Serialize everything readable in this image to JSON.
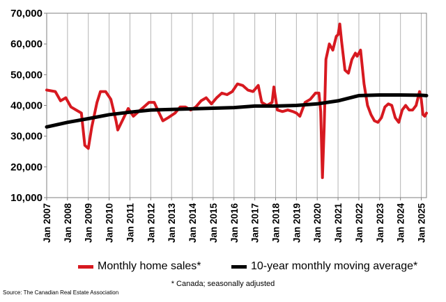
{
  "chart_data": {
    "type": "line",
    "title": "",
    "xlabel": "",
    "ylabel": "",
    "ylim": [
      10000,
      70000
    ],
    "y_ticks": [
      "10,000",
      "20,000",
      "30,000",
      "40,000",
      "50,000",
      "60,000",
      "70,000"
    ],
    "x_ticks": [
      "Jan 2007",
      "Jan 2008",
      "Jan 2009",
      "Jan 2010",
      "Jan 2011",
      "Jan 2012",
      "Jan 2013",
      "Jan 2014",
      "Jan 2015",
      "Jan 2016",
      "Jan 2017",
      "Jan 2018",
      "Jan 2019",
      "Jan 2020",
      "Jan 2021",
      "Jan 2022",
      "Jan 2023",
      "Jan 2024",
      "Jan 2025"
    ],
    "x_range": [
      "2007-01",
      "2025-04"
    ],
    "grid": "vertical gridlines at each January",
    "legend_position": "bottom",
    "series": [
      {
        "name": "Monthly home sales*",
        "color": "#d71920",
        "points": [
          [
            "2007-01",
            45000
          ],
          [
            "2007-06",
            44500
          ],
          [
            "2007-09",
            41500
          ],
          [
            "2007-12",
            42500
          ],
          [
            "2008-03",
            39500
          ],
          [
            "2008-06",
            38500
          ],
          [
            "2008-09",
            37500
          ],
          [
            "2008-11",
            27000
          ],
          [
            "2009-01",
            26000
          ],
          [
            "2009-03",
            33000
          ],
          [
            "2009-06",
            41000
          ],
          [
            "2009-08",
            44500
          ],
          [
            "2009-11",
            44500
          ],
          [
            "2010-02",
            42000
          ],
          [
            "2010-05",
            35000
          ],
          [
            "2010-06",
            32000
          ],
          [
            "2010-09",
            35500
          ],
          [
            "2010-12",
            39000
          ],
          [
            "2011-03",
            36500
          ],
          [
            "2011-06",
            38000
          ],
          [
            "2011-09",
            39500
          ],
          [
            "2011-12",
            41000
          ],
          [
            "2012-03",
            41000
          ],
          [
            "2012-05",
            38500
          ],
          [
            "2012-08",
            35000
          ],
          [
            "2012-11",
            36000
          ],
          [
            "2013-03",
            37500
          ],
          [
            "2013-06",
            39500
          ],
          [
            "2013-09",
            39500
          ],
          [
            "2013-12",
            38500
          ],
          [
            "2014-03",
            39500
          ],
          [
            "2014-06",
            41500
          ],
          [
            "2014-09",
            42500
          ],
          [
            "2014-12",
            40500
          ],
          [
            "2015-03",
            42500
          ],
          [
            "2015-06",
            44000
          ],
          [
            "2015-09",
            43500
          ],
          [
            "2015-12",
            44500
          ],
          [
            "2016-03",
            47000
          ],
          [
            "2016-06",
            46500
          ],
          [
            "2016-09",
            45000
          ],
          [
            "2016-12",
            44500
          ],
          [
            "2017-03",
            46500
          ],
          [
            "2017-05",
            41000
          ],
          [
            "2017-08",
            40000
          ],
          [
            "2017-11",
            41000
          ],
          [
            "2017-12",
            46000
          ],
          [
            "2018-02",
            38500
          ],
          [
            "2018-05",
            38000
          ],
          [
            "2018-08",
            38500
          ],
          [
            "2018-11",
            38000
          ],
          [
            "2019-01",
            37500
          ],
          [
            "2019-03",
            36500
          ],
          [
            "2019-06",
            41000
          ],
          [
            "2019-09",
            42000
          ],
          [
            "2019-12",
            44000
          ],
          [
            "2020-02",
            44000
          ],
          [
            "2020-03",
            38000
          ],
          [
            "2020-04",
            16500
          ],
          [
            "2020-05",
            33000
          ],
          [
            "2020-06",
            55000
          ],
          [
            "2020-08",
            60000
          ],
          [
            "2020-10",
            58000
          ],
          [
            "2020-12",
            62500
          ],
          [
            "2021-01",
            63000
          ],
          [
            "2021-02",
            66500
          ],
          [
            "2021-03",
            61000
          ],
          [
            "2021-05",
            51500
          ],
          [
            "2021-07",
            50500
          ],
          [
            "2021-09",
            55000
          ],
          [
            "2021-11",
            57000
          ],
          [
            "2021-12",
            56000
          ],
          [
            "2022-02",
            58000
          ],
          [
            "2022-04",
            47000
          ],
          [
            "2022-06",
            40000
          ],
          [
            "2022-08",
            37000
          ],
          [
            "2022-10",
            35000
          ],
          [
            "2022-12",
            34500
          ],
          [
            "2023-02",
            36000
          ],
          [
            "2023-04",
            39500
          ],
          [
            "2023-06",
            40500
          ],
          [
            "2023-08",
            40000
          ],
          [
            "2023-10",
            36000
          ],
          [
            "2023-12",
            34500
          ],
          [
            "2024-02",
            38500
          ],
          [
            "2024-04",
            40000
          ],
          [
            "2024-06",
            38500
          ],
          [
            "2024-08",
            38500
          ],
          [
            "2024-10",
            40000
          ],
          [
            "2024-12",
            44500
          ],
          [
            "2025-01",
            42000
          ],
          [
            "2025-02",
            37000
          ],
          [
            "2025-03",
            36500
          ],
          [
            "2025-04",
            37500
          ]
        ]
      },
      {
        "name": "10-year monthly moving average*",
        "color": "#000000",
        "points": [
          [
            "2007-01",
            33000
          ],
          [
            "2008-01",
            34500
          ],
          [
            "2009-01",
            35700
          ],
          [
            "2010-01",
            37000
          ],
          [
            "2011-01",
            37800
          ],
          [
            "2012-01",
            38500
          ],
          [
            "2013-01",
            38700
          ],
          [
            "2014-01",
            38900
          ],
          [
            "2015-01",
            39100
          ],
          [
            "2016-01",
            39300
          ],
          [
            "2017-01",
            39800
          ],
          [
            "2018-01",
            39800
          ],
          [
            "2019-01",
            40000
          ],
          [
            "2020-01",
            40500
          ],
          [
            "2021-01",
            41500
          ],
          [
            "2022-01",
            43200
          ],
          [
            "2023-01",
            43400
          ],
          [
            "2024-01",
            43400
          ],
          [
            "2025-01",
            43300
          ],
          [
            "2025-04",
            43200
          ]
        ]
      }
    ]
  },
  "footnote": "* Canada; seasonally adjusted",
  "source": "Source: The Canadian Real Estate Association"
}
